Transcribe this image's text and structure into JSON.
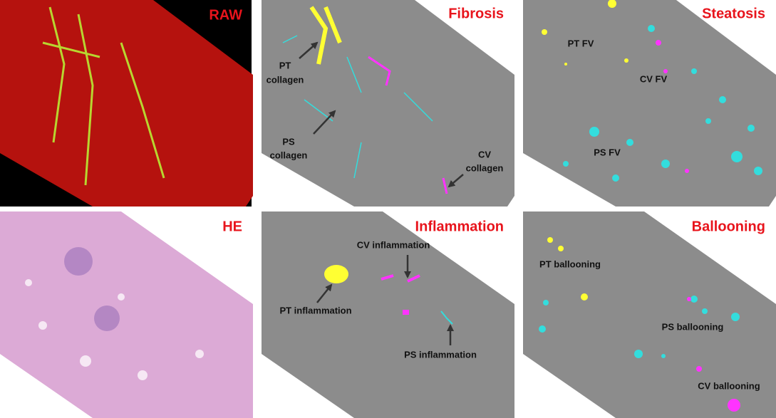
{
  "panels": [
    {
      "title": "RAW"
    },
    {
      "title": "Fibrosis",
      "labels": [
        [
          "PT",
          "collagen"
        ],
        [
          "PS",
          "collagen"
        ],
        [
          "CV",
          "collagen"
        ]
      ]
    },
    {
      "title": "Steatosis",
      "labels": [
        [
          "PT FV"
        ],
        [
          "CV FV"
        ],
        [
          "PS FV"
        ]
      ]
    },
    {
      "title": "HE"
    },
    {
      "title": "Inflammation",
      "labels": [
        [
          "CV inflammation"
        ],
        [
          "PT inflammation"
        ],
        [
          "PS inflammation"
        ]
      ]
    },
    {
      "title": "Ballooning",
      "labels": [
        [
          "PT ballooning"
        ],
        [
          "PS ballooning"
        ],
        [
          "CV ballooning"
        ]
      ]
    }
  ]
}
